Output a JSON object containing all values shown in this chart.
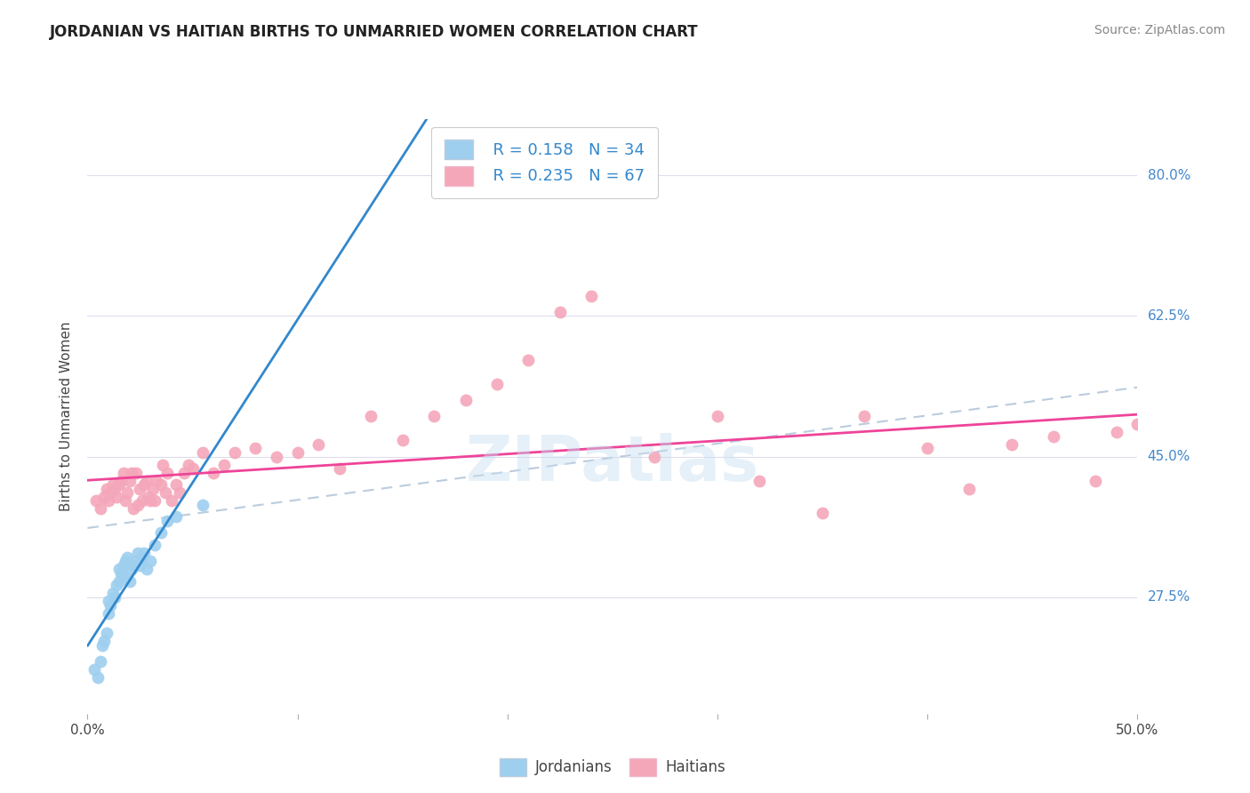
{
  "title": "JORDANIAN VS HAITIAN BIRTHS TO UNMARRIED WOMEN CORRELATION CHART",
  "source": "Source: ZipAtlas.com",
  "ylabel": "Births to Unmarried Women",
  "ytick_labels": [
    "80.0%",
    "62.5%",
    "45.0%",
    "27.5%"
  ],
  "ytick_values": [
    0.8,
    0.625,
    0.45,
    0.275
  ],
  "xlim": [
    0.0,
    0.5
  ],
  "ylim": [
    0.13,
    0.87
  ],
  "legend_r_jordanian": "R = 0.158",
  "legend_n_jordanian": "N = 34",
  "legend_r_haitian": "R = 0.235",
  "legend_n_haitian": "N = 67",
  "color_jordanian": "#9ecfef",
  "color_haitian": "#f4a7b9",
  "color_line_jordanian": "#3388cc",
  "color_line_haitian": "#ee4499",
  "color_dashed": "#bbccdd",
  "background_color": "#ffffff",
  "watermark": "ZIPatlas",
  "jordanian_x": [
    0.003,
    0.005,
    0.006,
    0.007,
    0.008,
    0.009,
    0.01,
    0.01,
    0.011,
    0.012,
    0.013,
    0.014,
    0.015,
    0.015,
    0.016,
    0.017,
    0.018,
    0.018,
    0.019,
    0.02,
    0.021,
    0.022,
    0.023,
    0.024,
    0.025,
    0.026,
    0.027,
    0.028,
    0.03,
    0.032,
    0.035,
    0.038,
    0.042,
    0.055
  ],
  "jordanian_y": [
    0.185,
    0.175,
    0.195,
    0.215,
    0.22,
    0.23,
    0.255,
    0.27,
    0.265,
    0.28,
    0.275,
    0.29,
    0.295,
    0.31,
    0.305,
    0.315,
    0.3,
    0.32,
    0.325,
    0.295,
    0.31,
    0.315,
    0.32,
    0.33,
    0.315,
    0.325,
    0.33,
    0.31,
    0.32,
    0.34,
    0.355,
    0.37,
    0.375,
    0.39
  ],
  "haitian_x": [
    0.004,
    0.006,
    0.008,
    0.009,
    0.01,
    0.011,
    0.012,
    0.013,
    0.014,
    0.015,
    0.016,
    0.017,
    0.018,
    0.019,
    0.02,
    0.021,
    0.022,
    0.023,
    0.024,
    0.025,
    0.026,
    0.027,
    0.028,
    0.029,
    0.03,
    0.031,
    0.032,
    0.033,
    0.035,
    0.036,
    0.037,
    0.038,
    0.04,
    0.042,
    0.044,
    0.046,
    0.048,
    0.05,
    0.055,
    0.06,
    0.065,
    0.07,
    0.08,
    0.09,
    0.1,
    0.11,
    0.12,
    0.135,
    0.15,
    0.165,
    0.18,
    0.195,
    0.21,
    0.225,
    0.24,
    0.27,
    0.3,
    0.32,
    0.35,
    0.37,
    0.4,
    0.42,
    0.44,
    0.46,
    0.48,
    0.49,
    0.5
  ],
  "haitian_y": [
    0.395,
    0.385,
    0.4,
    0.41,
    0.395,
    0.405,
    0.415,
    0.41,
    0.4,
    0.415,
    0.42,
    0.43,
    0.395,
    0.405,
    0.42,
    0.43,
    0.385,
    0.43,
    0.39,
    0.41,
    0.395,
    0.415,
    0.42,
    0.4,
    0.395,
    0.41,
    0.395,
    0.42,
    0.415,
    0.44,
    0.405,
    0.43,
    0.395,
    0.415,
    0.405,
    0.43,
    0.44,
    0.435,
    0.455,
    0.43,
    0.44,
    0.455,
    0.46,
    0.45,
    0.455,
    0.465,
    0.435,
    0.5,
    0.47,
    0.5,
    0.52,
    0.54,
    0.57,
    0.63,
    0.65,
    0.45,
    0.5,
    0.42,
    0.38,
    0.5,
    0.46,
    0.41,
    0.465,
    0.475,
    0.42,
    0.48,
    0.49
  ]
}
